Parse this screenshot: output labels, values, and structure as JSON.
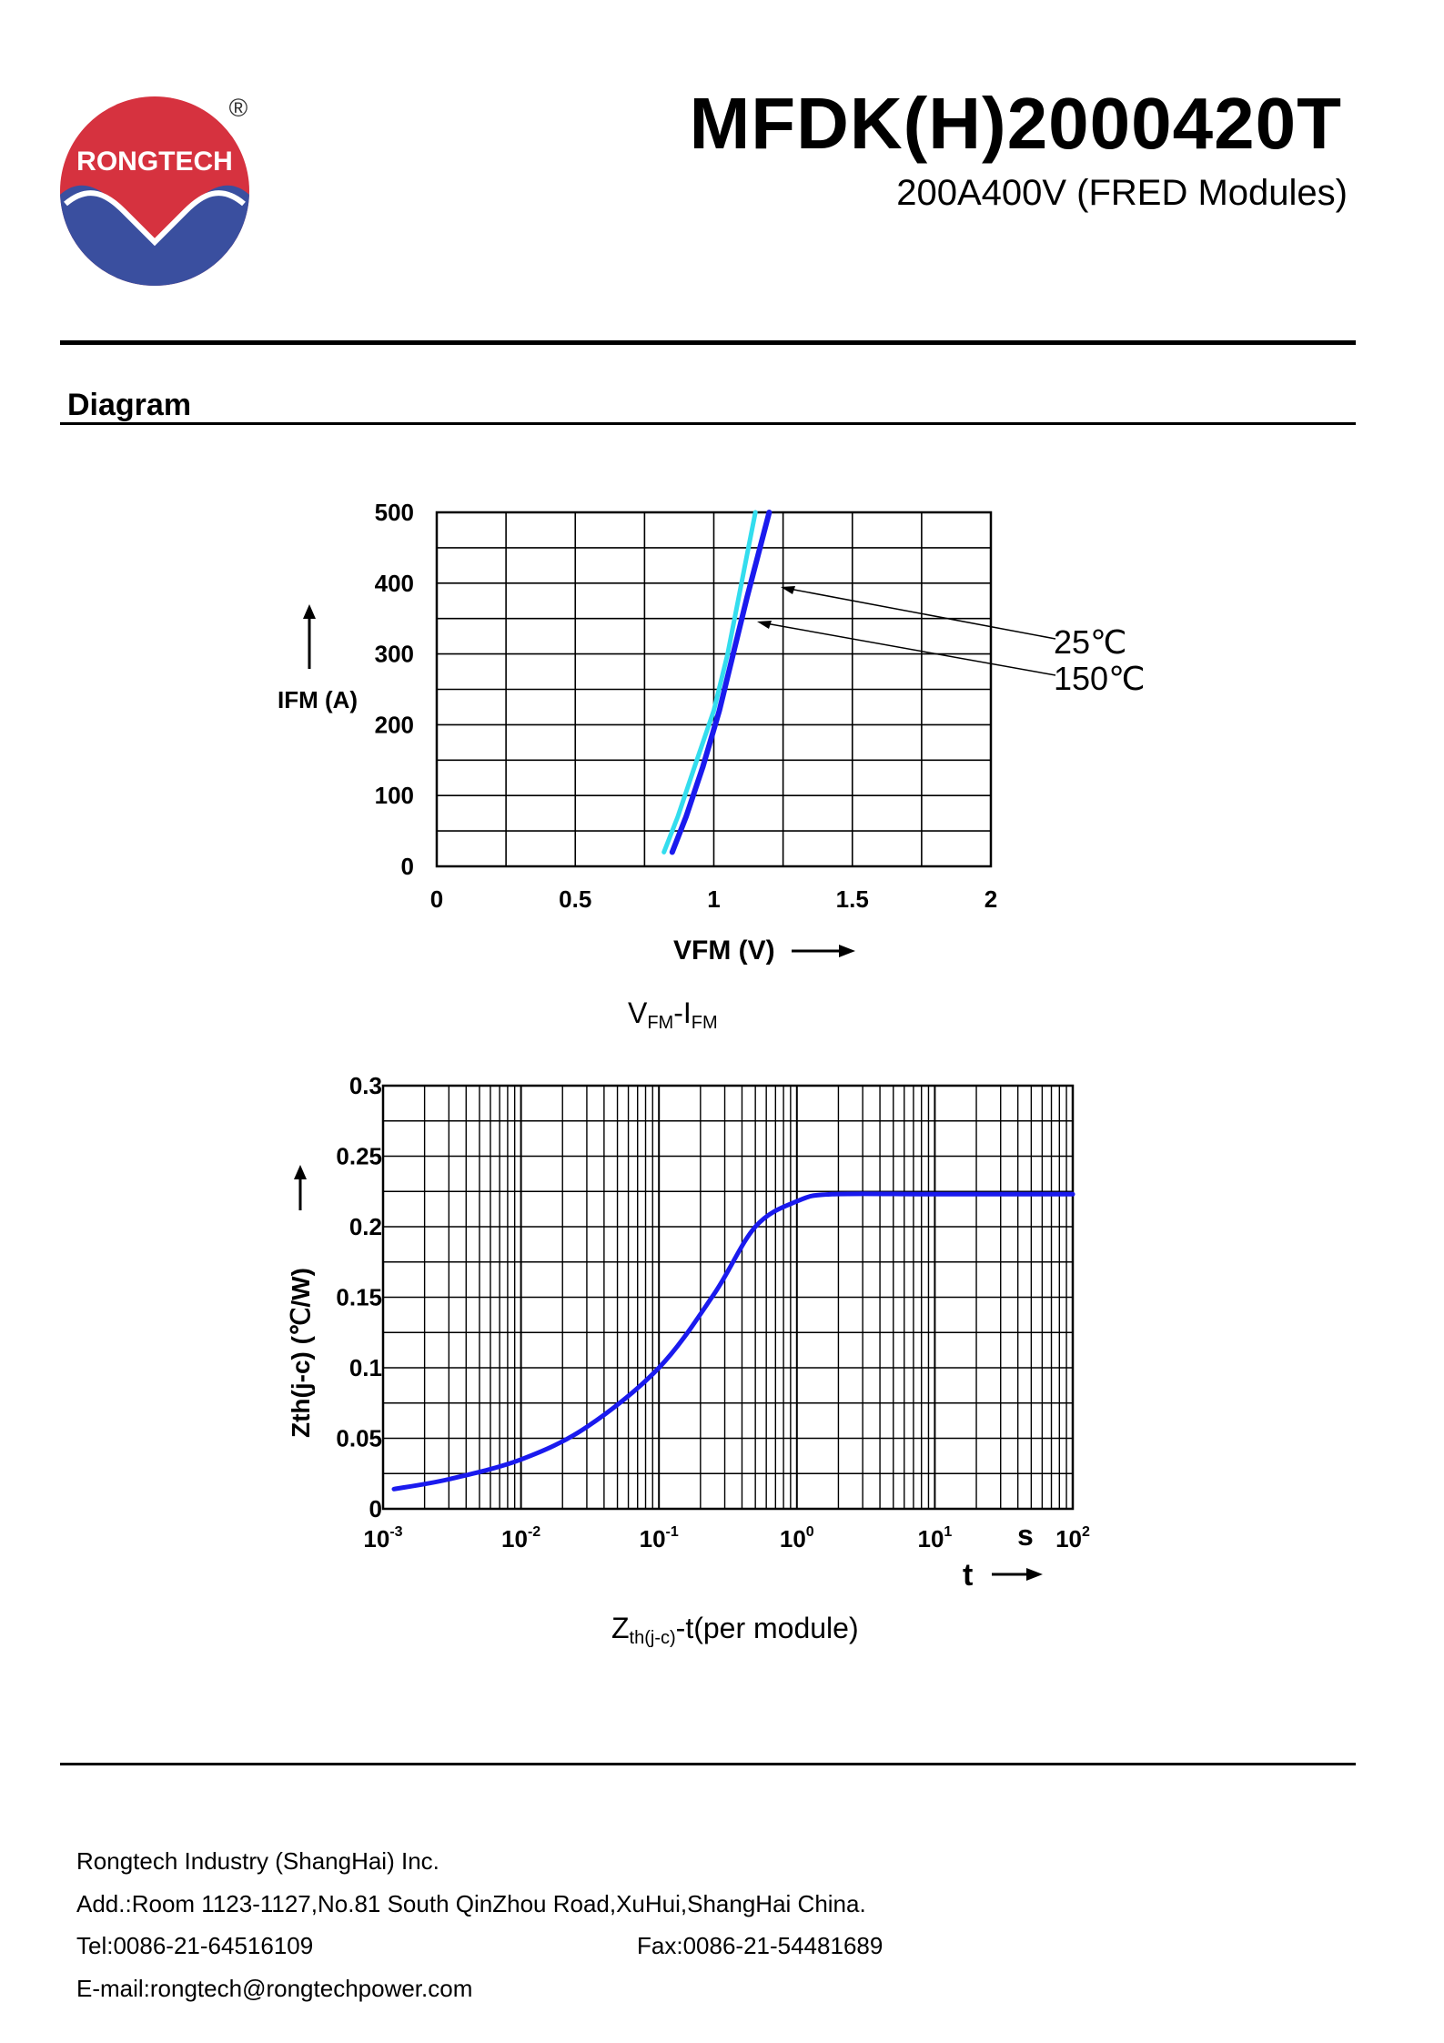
{
  "header": {
    "logo_text": "RONGTECH",
    "registered_mark": "®",
    "part_number": "MFDK(H)2000420T",
    "subtitle": "200A400V (FRED Modules)"
  },
  "section": {
    "title": "Diagram"
  },
  "colors": {
    "curve_25c": "#1a1aee",
    "curve_150c": "#33ddee",
    "zth_curve": "#1a1aee",
    "logo_red": "#d6323f",
    "logo_blue": "#3a4f9f"
  },
  "chart_data": [
    {
      "type": "line",
      "title": "VFM-IFM",
      "caption": {
        "main1": "V",
        "sub1": "FM",
        "dash": "-",
        "main2": "I",
        "sub2": "FM"
      },
      "xlabel": "VFM (V)",
      "ylabel": "IFM (A)",
      "xlim": [
        0,
        2
      ],
      "ylim": [
        0,
        500
      ],
      "x_ticks": [
        0,
        0.5,
        1,
        1.5,
        2
      ],
      "x_tick_labels": [
        "0",
        "0.5",
        "1",
        "1.5",
        "2"
      ],
      "y_ticks": [
        0,
        100,
        200,
        300,
        400,
        500
      ],
      "y_tick_labels": [
        "0",
        "100",
        "200",
        "300",
        "400",
        "500"
      ],
      "grid": true,
      "series": [
        {
          "name": "25℃",
          "x": [
            0.85,
            0.9,
            0.96,
            1.02,
            1.07,
            1.12,
            1.16,
            1.2
          ],
          "y": [
            20,
            70,
            140,
            220,
            300,
            380,
            440,
            500
          ]
        },
        {
          "name": "150℃",
          "x": [
            0.82,
            0.87,
            0.93,
            1.0,
            1.05,
            1.09,
            1.12,
            1.15
          ],
          "y": [
            20,
            70,
            140,
            220,
            300,
            380,
            440,
            500
          ]
        }
      ],
      "annotations": [
        "25℃",
        "150℃"
      ]
    },
    {
      "type": "line",
      "title": "Zth(j-c)-t(per module)",
      "caption": {
        "main1": "Z",
        "sub1": "th(j-c)",
        "rest": "-t(per module)"
      },
      "xlabel": "t",
      "x_unit": "s",
      "ylabel": "Zth(j-c) (℃/W)",
      "xscale": "log",
      "xlim": [
        0.001,
        100
      ],
      "ylim": [
        0,
        0.3
      ],
      "x_tick_labels": [
        {
          "base": "10",
          "exp": "-3"
        },
        {
          "base": "10",
          "exp": "-2"
        },
        {
          "base": "10",
          "exp": "-1"
        },
        {
          "base": "10",
          "exp": "0"
        },
        {
          "base": "10",
          "exp": "1"
        },
        {
          "base": "10",
          "exp": "2"
        }
      ],
      "y_ticks": [
        0,
        0.05,
        0.1,
        0.15,
        0.2,
        0.25,
        0.3
      ],
      "y_tick_labels": [
        "0",
        "0.05",
        "0.1",
        "0.15",
        "0.2",
        "0.25",
        "0.3"
      ],
      "grid": true,
      "series": [
        {
          "name": "Zth(j-c)",
          "x": [
            0.0012,
            0.003,
            0.01,
            0.03,
            0.1,
            0.25,
            0.5,
            1,
            1.8,
            10,
            100
          ],
          "y": [
            0.014,
            0.021,
            0.035,
            0.058,
            0.1,
            0.152,
            0.2,
            0.218,
            0.223,
            0.223,
            0.223
          ]
        }
      ]
    }
  ],
  "footer": {
    "company": "Rongtech Industry (ShangHai) Inc.",
    "address": "Add.:Room 1123-1127,No.81 South QinZhou Road,XuHui,ShangHai China.",
    "tel": "Tel:0086-21-64516109",
    "fax": "Fax:0086-21-54481689",
    "email": "E-mail:rongtech@rongtechpower.com"
  }
}
